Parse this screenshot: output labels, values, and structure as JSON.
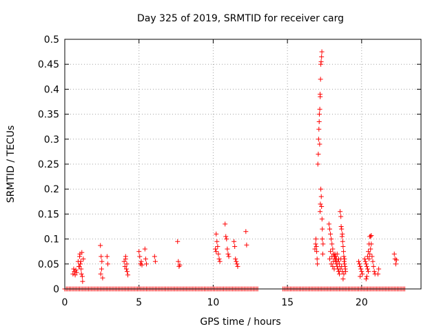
{
  "chart_data": {
    "type": "scatter",
    "title": "Day 325 of 2019, SRMTID for receiver carg",
    "xlabel": "GPS time / hours",
    "ylabel": "SRMTID / TECUs",
    "xlim": [
      0,
      24
    ],
    "ylim": [
      0,
      0.5
    ],
    "grid": true,
    "marker": "+",
    "color": "#ff0000",
    "x_ticks": [
      0,
      5,
      10,
      15,
      20
    ],
    "x_tick_labels": [
      "0",
      "5",
      "10",
      "15",
      "20"
    ],
    "y_ticks": [
      0,
      0.05,
      0.1,
      0.15,
      0.2,
      0.25,
      0.3,
      0.35,
      0.4,
      0.45,
      0.5
    ],
    "y_tick_labels": [
      "0",
      "0.05",
      "0.1",
      "0.15",
      "0.2",
      "0.25",
      "0.3",
      "0.35",
      "0.4",
      "0.45",
      "0.5"
    ],
    "series": [
      {
        "name": "SRMTID",
        "points": [
          [
            0.55,
            0.03
          ],
          [
            0.6,
            0.04
          ],
          [
            0.65,
            0.035
          ],
          [
            0.7,
            0.028
          ],
          [
            0.75,
            0.038
          ],
          [
            0.8,
            0.033
          ],
          [
            0.9,
            0.055
          ],
          [
            0.95,
            0.045
          ],
          [
            1.0,
            0.065
          ],
          [
            1.02,
            0.07
          ],
          [
            1.05,
            0.05
          ],
          [
            1.1,
            0.04
          ],
          [
            1.12,
            0.03
          ],
          [
            1.15,
            0.073
          ],
          [
            1.18,
            0.025
          ],
          [
            1.2,
            0.015
          ],
          [
            1.25,
            0.06
          ],
          [
            0.98,
            0.045
          ],
          [
            1.08,
            0.055
          ],
          [
            2.4,
            0.087
          ],
          [
            2.45,
            0.065
          ],
          [
            2.5,
            0.055
          ],
          [
            2.42,
            0.03
          ],
          [
            2.48,
            0.04
          ],
          [
            2.55,
            0.022
          ],
          [
            2.85,
            0.065
          ],
          [
            2.9,
            0.05
          ],
          [
            4.0,
            0.055
          ],
          [
            4.05,
            0.045
          ],
          [
            4.1,
            0.06
          ],
          [
            4.15,
            0.04
          ],
          [
            4.2,
            0.035
          ],
          [
            4.25,
            0.028
          ],
          [
            4.1,
            0.065
          ],
          [
            4.18,
            0.05
          ],
          [
            5.0,
            0.075
          ],
          [
            5.05,
            0.065
          ],
          [
            5.1,
            0.05
          ],
          [
            5.15,
            0.055
          ],
          [
            5.2,
            0.048
          ],
          [
            5.4,
            0.08
          ],
          [
            5.45,
            0.06
          ],
          [
            5.5,
            0.05
          ],
          [
            6.05,
            0.065
          ],
          [
            6.1,
            0.055
          ],
          [
            7.6,
            0.095
          ],
          [
            7.65,
            0.055
          ],
          [
            7.7,
            0.045
          ],
          [
            7.75,
            0.048
          ],
          [
            10.15,
            0.08
          ],
          [
            10.2,
            0.11
          ],
          [
            10.25,
            0.095
          ],
          [
            10.3,
            0.085
          ],
          [
            10.35,
            0.07
          ],
          [
            10.4,
            0.06
          ],
          [
            10.45,
            0.055
          ],
          [
            10.2,
            0.075
          ],
          [
            10.8,
            0.13
          ],
          [
            10.85,
            0.105
          ],
          [
            10.9,
            0.1
          ],
          [
            10.95,
            0.08
          ],
          [
            11.0,
            0.07
          ],
          [
            11.05,
            0.065
          ],
          [
            11.4,
            0.095
          ],
          [
            11.45,
            0.085
          ],
          [
            11.5,
            0.06
          ],
          [
            11.55,
            0.055
          ],
          [
            11.6,
            0.05
          ],
          [
            11.65,
            0.045
          ],
          [
            12.2,
            0.115
          ],
          [
            12.25,
            0.088
          ],
          [
            16.85,
            0.08
          ],
          [
            16.9,
            0.09
          ],
          [
            16.92,
            0.1
          ],
          [
            16.95,
            0.085
          ],
          [
            16.97,
            0.075
          ],
          [
            17.0,
            0.06
          ],
          [
            17.02,
            0.05
          ],
          [
            17.05,
            0.25
          ],
          [
            17.08,
            0.27
          ],
          [
            17.1,
            0.3
          ],
          [
            17.12,
            0.32
          ],
          [
            17.14,
            0.335
          ],
          [
            17.15,
            0.35
          ],
          [
            17.17,
            0.29
          ],
          [
            17.18,
            0.36
          ],
          [
            17.2,
            0.39
          ],
          [
            17.21,
            0.385
          ],
          [
            17.23,
            0.42
          ],
          [
            17.25,
            0.45
          ],
          [
            17.27,
            0.455
          ],
          [
            17.3,
            0.465
          ],
          [
            17.32,
            0.475
          ],
          [
            17.25,
            0.2
          ],
          [
            17.28,
            0.185
          ],
          [
            17.3,
            0.165
          ],
          [
            17.33,
            0.14
          ],
          [
            17.35,
            0.12
          ],
          [
            17.2,
            0.155
          ],
          [
            17.22,
            0.17
          ],
          [
            17.35,
            0.1
          ],
          [
            17.4,
            0.09
          ],
          [
            17.38,
            0.07
          ],
          [
            17.8,
            0.13
          ],
          [
            17.85,
            0.12
          ],
          [
            17.9,
            0.11
          ],
          [
            17.95,
            0.1
          ],
          [
            18.0,
            0.09
          ],
          [
            18.05,
            0.08
          ],
          [
            18.1,
            0.07
          ],
          [
            18.15,
            0.065
          ],
          [
            18.2,
            0.06
          ],
          [
            18.25,
            0.055
          ],
          [
            18.3,
            0.05
          ],
          [
            18.35,
            0.045
          ],
          [
            18.4,
            0.04
          ],
          [
            18.45,
            0.035
          ],
          [
            18.5,
            0.03
          ],
          [
            17.85,
            0.06
          ],
          [
            17.9,
            0.075
          ],
          [
            17.95,
            0.05
          ],
          [
            18.0,
            0.065
          ],
          [
            18.05,
            0.045
          ],
          [
            18.1,
            0.055
          ],
          [
            18.15,
            0.04
          ],
          [
            18.2,
            0.07
          ],
          [
            18.25,
            0.065
          ],
          [
            18.3,
            0.06
          ],
          [
            18.35,
            0.07
          ],
          [
            18.4,
            0.055
          ],
          [
            18.45,
            0.06
          ],
          [
            18.5,
            0.05
          ],
          [
            18.55,
            0.155
          ],
          [
            18.6,
            0.145
          ],
          [
            18.62,
            0.125
          ],
          [
            18.65,
            0.12
          ],
          [
            18.68,
            0.105
          ],
          [
            18.7,
            0.11
          ],
          [
            18.72,
            0.095
          ],
          [
            18.75,
            0.085
          ],
          [
            18.78,
            0.075
          ],
          [
            18.8,
            0.065
          ],
          [
            18.82,
            0.055
          ],
          [
            18.85,
            0.05
          ],
          [
            18.88,
            0.045
          ],
          [
            18.9,
            0.04
          ],
          [
            18.92,
            0.035
          ],
          [
            18.6,
            0.06
          ],
          [
            18.65,
            0.045
          ],
          [
            18.7,
            0.035
          ],
          [
            18.75,
            0.02
          ],
          [
            18.8,
            0.03
          ],
          [
            18.85,
            0.06
          ],
          [
            18.55,
            0.04
          ],
          [
            19.8,
            0.055
          ],
          [
            19.85,
            0.05
          ],
          [
            19.9,
            0.045
          ],
          [
            19.95,
            0.04
          ],
          [
            20.0,
            0.035
          ],
          [
            20.05,
            0.03
          ],
          [
            19.9,
            0.025
          ],
          [
            20.2,
            0.06
          ],
          [
            20.25,
            0.055
          ],
          [
            20.3,
            0.05
          ],
          [
            20.35,
            0.045
          ],
          [
            20.4,
            0.04
          ],
          [
            20.45,
            0.035
          ],
          [
            20.5,
            0.06
          ],
          [
            20.55,
            0.07
          ],
          [
            20.6,
            0.08
          ],
          [
            20.65,
            0.09
          ],
          [
            20.7,
            0.065
          ],
          [
            20.75,
            0.055
          ],
          [
            20.8,
            0.045
          ],
          [
            20.85,
            0.035
          ],
          [
            20.9,
            0.03
          ],
          [
            20.55,
            0.105
          ],
          [
            20.6,
            0.105
          ],
          [
            20.65,
            0.107
          ],
          [
            20.5,
            0.09
          ],
          [
            20.45,
            0.075
          ],
          [
            20.4,
            0.065
          ],
          [
            20.3,
            0.02
          ],
          [
            20.35,
            0.025
          ],
          [
            21.1,
            0.03
          ],
          [
            21.15,
            0.04
          ],
          [
            22.2,
            0.07
          ],
          [
            22.25,
            0.06
          ],
          [
            22.3,
            0.05
          ],
          [
            22.35,
            0.058
          ]
        ],
        "zero_ranges": [
          [
            0.0,
            13.0
          ],
          [
            14.7,
            22.9
          ]
        ]
      }
    ]
  }
}
